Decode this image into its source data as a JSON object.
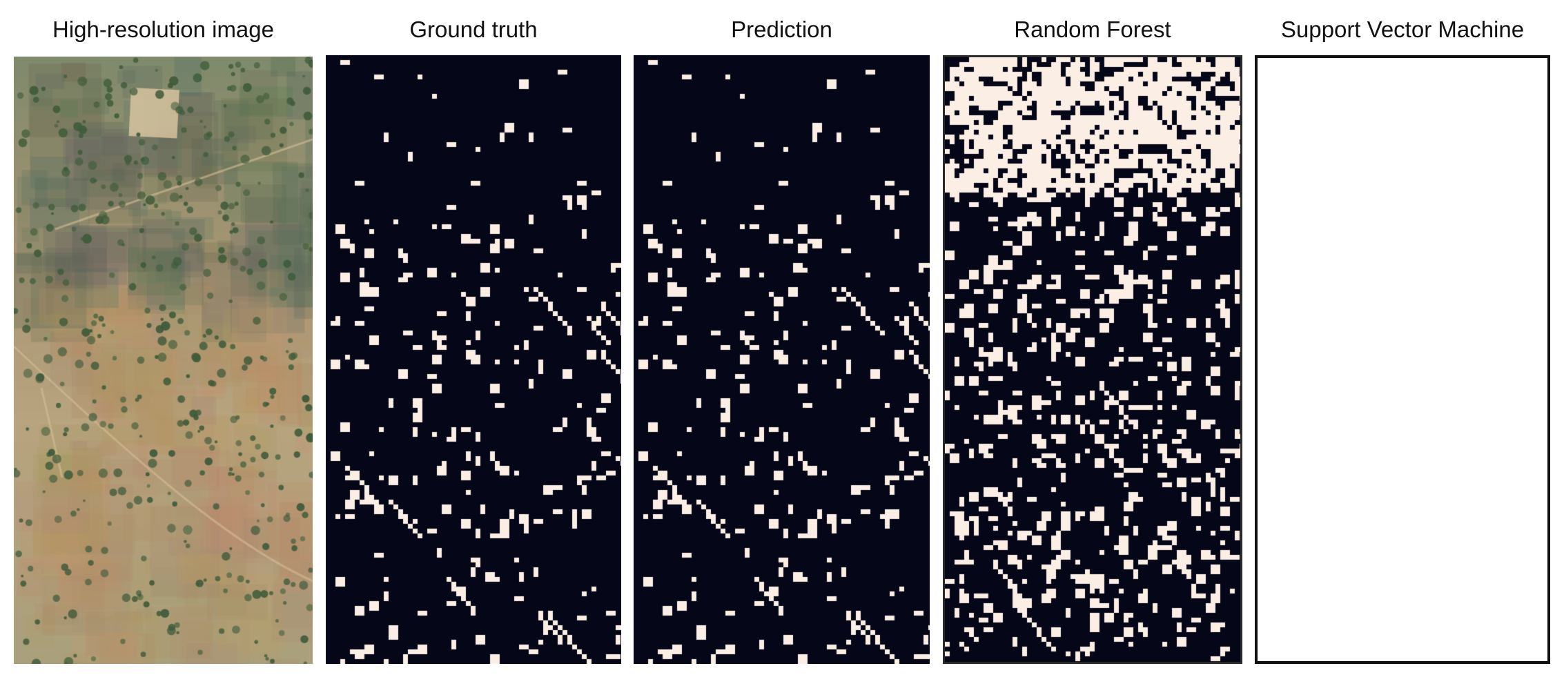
{
  "panels": [
    {
      "title": "High-resolution image",
      "kind": "satellite-photo"
    },
    {
      "title": "Ground truth",
      "kind": "binary-mask"
    },
    {
      "title": "Prediction",
      "kind": "binary-mask"
    },
    {
      "title": "Random Forest",
      "kind": "binary-mask"
    },
    {
      "title": "Support Vector Machine",
      "kind": "blank"
    }
  ],
  "colors": {
    "mask_background": "#050618",
    "mask_foreground": "#fbeee4",
    "photo_base": "#b9a47e",
    "photo_dark": "#5c6b52",
    "tree": "#3f5b3a"
  }
}
